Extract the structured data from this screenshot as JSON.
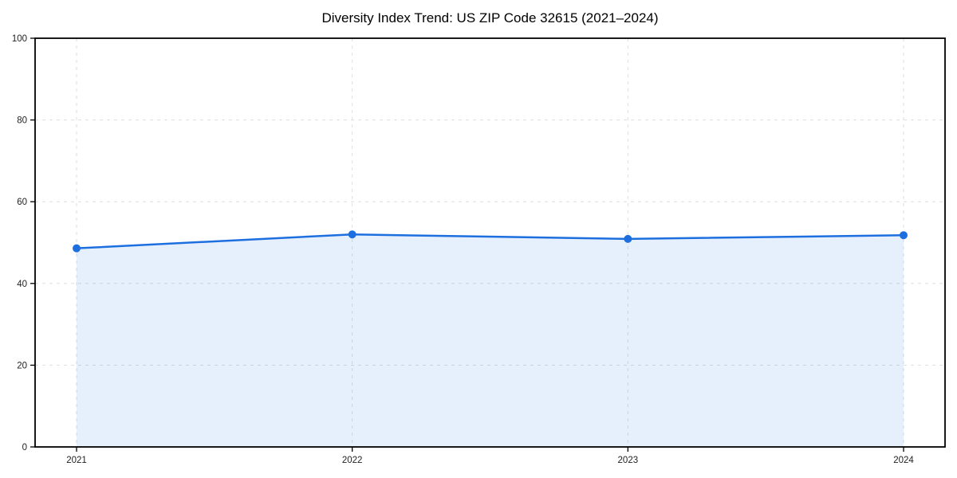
{
  "title": "Diversity Index Trend: US ZIP Code 32615 (2021–2024)",
  "chart_data": {
    "type": "area",
    "title": "Diversity Index Trend: US ZIP Code 32615 (2021–2024)",
    "x": [
      "2021",
      "2022",
      "2023",
      "2024"
    ],
    "series": [
      {
        "name": "Diversity Index",
        "values": [
          48.6,
          52.0,
          50.9,
          51.8
        ]
      }
    ],
    "xlabel": "",
    "ylabel": "",
    "ylim": [
      0,
      100
    ],
    "yticks": [
      0,
      20,
      40,
      60,
      80,
      100
    ],
    "grid": "dashed, horizontal and vertical",
    "legend": "none",
    "marker": "circle",
    "colors": {
      "line": "#1d6fe0",
      "fill": "rgba(29, 111, 224, 0.11)",
      "grid": "#dedede",
      "axis": "#000000",
      "tick_label": "#222222"
    }
  }
}
